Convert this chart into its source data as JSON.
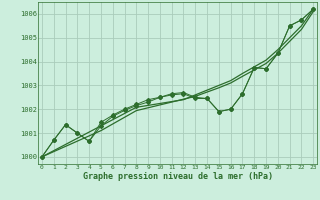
{
  "x": [
    0,
    1,
    2,
    3,
    4,
    5,
    6,
    7,
    8,
    9,
    10,
    11,
    12,
    13,
    14,
    15,
    16,
    17,
    18,
    19,
    20,
    21,
    22,
    23
  ],
  "jagged1": [
    1000.0,
    1000.7,
    1001.35,
    1001.0,
    1000.65,
    1001.45,
    1001.75,
    1002.0,
    1002.2,
    1002.4,
    1002.5,
    1002.65,
    1002.7,
    1002.5,
    1002.45,
    1001.9,
    1002.0,
    1002.65,
    1003.75,
    1003.7,
    1004.35,
    1005.5,
    1005.75,
    1006.2
  ],
  "jagged2": [
    1000.0,
    1000.7,
    1001.35,
    1001.0,
    1000.65,
    1001.3,
    1001.7,
    1001.95,
    1002.15,
    1002.3,
    1002.5,
    1002.6,
    1002.65,
    1002.45,
    1002.45,
    1001.9,
    1002.0,
    1002.65,
    1003.75,
    1003.7,
    1004.35,
    1005.5,
    1005.75,
    1006.2
  ],
  "smooth1": [
    1000.0,
    1000.26,
    1000.52,
    1000.78,
    1001.04,
    1001.3,
    1001.56,
    1001.82,
    1002.08,
    1002.16,
    1002.24,
    1002.32,
    1002.4,
    1002.6,
    1002.8,
    1003.0,
    1003.2,
    1003.5,
    1003.78,
    1004.06,
    1004.5,
    1005.0,
    1005.5,
    1006.2
  ],
  "smooth2": [
    1000.0,
    1000.22,
    1000.44,
    1000.66,
    1000.88,
    1001.1,
    1001.38,
    1001.66,
    1001.94,
    1002.06,
    1002.18,
    1002.3,
    1002.42,
    1002.54,
    1002.72,
    1002.9,
    1003.1,
    1003.38,
    1003.65,
    1003.92,
    1004.35,
    1004.85,
    1005.35,
    1006.1
  ],
  "bg_color": "#cceedd",
  "grid_color": "#aaccbb",
  "line_color": "#2d6e2d",
  "xlabel": "Graphe pression niveau de la mer (hPa)",
  "ylim": [
    999.7,
    1006.5
  ],
  "yticks": [
    1000,
    1001,
    1002,
    1003,
    1004,
    1005,
    1006
  ],
  "xticks": [
    0,
    1,
    2,
    3,
    4,
    5,
    6,
    7,
    8,
    9,
    10,
    11,
    12,
    13,
    14,
    15,
    16,
    17,
    18,
    19,
    20,
    21,
    22,
    23
  ]
}
